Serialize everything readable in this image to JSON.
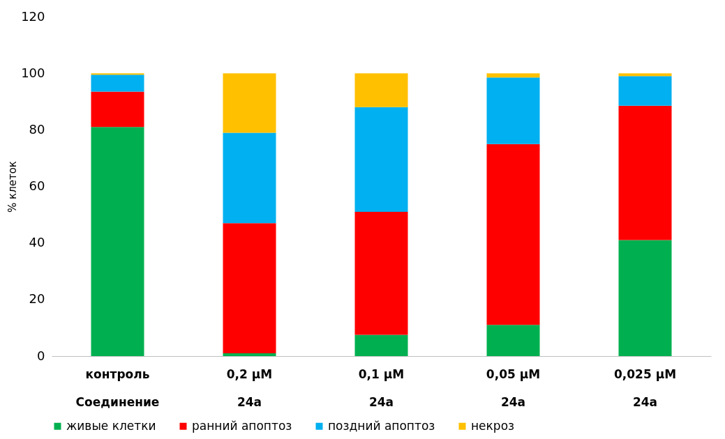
{
  "chart_data": {
    "type": "bar",
    "stacked": true,
    "ylabel": "% клеток",
    "categories": [
      "контроль\nСоединение",
      "0,2 µM\n24a",
      "0,1 µM\n24a",
      "0,05 µM\n24a",
      "0,025 µM\n24a"
    ],
    "series": [
      {
        "name": "живые клетки",
        "color": "#00b050",
        "values": [
          81,
          1,
          7.5,
          11,
          41
        ]
      },
      {
        "name": "ранний апоптоз",
        "color": "#ff0000",
        "values": [
          12.5,
          46,
          43.5,
          64,
          47.5
        ]
      },
      {
        "name": "поздний апоптоз",
        "color": "#00b0f0",
        "values": [
          6,
          32,
          37,
          23.5,
          10.5
        ]
      },
      {
        "name": "некроз",
        "color": "#ffc000",
        "values": [
          0.5,
          21,
          12,
          1.5,
          1
        ]
      }
    ],
    "ylim": [
      0,
      120
    ],
    "yticks": [
      0,
      20,
      40,
      60,
      80,
      100,
      120
    ],
    "grid": false,
    "legend": "bottom"
  }
}
